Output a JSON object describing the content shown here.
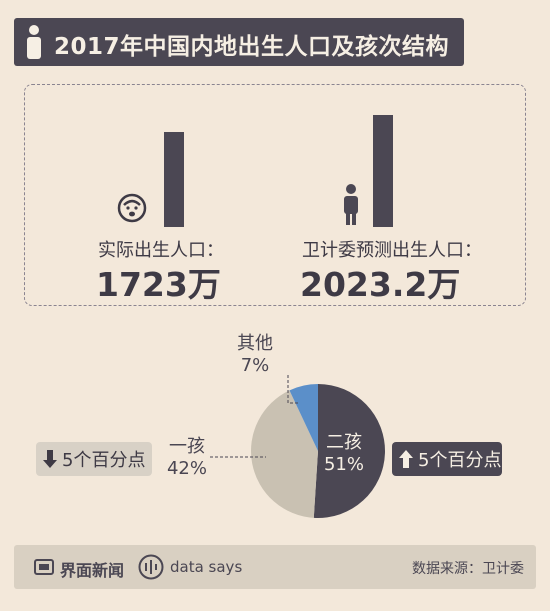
{
  "header": {
    "title": "2017年中国内地出生人口及孩次结构"
  },
  "panel": {
    "actual": {
      "label": "实际出生人口：",
      "value": "1723万"
    },
    "forecast": {
      "label": "卫计委预测出生人口：",
      "value": "2023.2万"
    }
  },
  "pie": {
    "other_name": "其他",
    "other_pct": "7%",
    "first_name": "一孩",
    "first_pct": "42%",
    "second_name": "二孩",
    "second_pct": "51%",
    "down_chip": "5个百分点",
    "up_chip": "5个百分点"
  },
  "footer": {
    "brand": "界面新闻",
    "datasays": "data says",
    "source": "数据来源：卫计委"
  },
  "colors": {
    "dark": "#4b4753",
    "first": "#c9c1b2",
    "other": "#5b8fc9"
  },
  "chart_data": [
    {
      "type": "bar",
      "categories": [
        "实际出生人口",
        "卫计委预测出生人口"
      ],
      "values": [
        1723,
        2023.2
      ],
      "unit": "万"
    },
    {
      "type": "pie",
      "categories": [
        "二孩",
        "一孩",
        "其他"
      ],
      "values": [
        51,
        42,
        7
      ],
      "unit": "%"
    }
  ]
}
